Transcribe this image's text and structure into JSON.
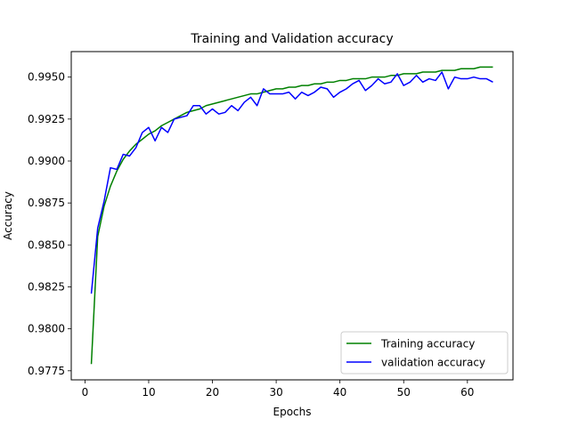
{
  "chart_data": {
    "type": "line",
    "title": "Training and Validation accuracy",
    "xlabel": "Epochs",
    "ylabel": "Accuracy",
    "xlim": [
      -2.15,
      67.15
    ],
    "ylim": [
      0.97696,
      0.99652
    ],
    "xticks": [
      0,
      10,
      20,
      30,
      40,
      50,
      60
    ],
    "xtick_labels": [
      "0",
      "10",
      "20",
      "30",
      "40",
      "50",
      "60"
    ],
    "yticks": [
      0.9775,
      0.98,
      0.9825,
      0.985,
      0.9875,
      0.99,
      0.9925,
      0.995
    ],
    "ytick_labels": [
      "0.9775",
      "0.9800",
      "0.9825",
      "0.9850",
      "0.9875",
      "0.9900",
      "0.9925",
      "0.9950"
    ],
    "grid": false,
    "legend_position": "lower-right",
    "x": [
      1,
      2,
      3,
      4,
      5,
      6,
      7,
      8,
      9,
      10,
      11,
      12,
      13,
      14,
      15,
      16,
      17,
      18,
      19,
      20,
      21,
      22,
      23,
      24,
      25,
      26,
      27,
      28,
      29,
      30,
      31,
      32,
      33,
      34,
      35,
      36,
      37,
      38,
      39,
      40,
      41,
      42,
      43,
      44,
      45,
      46,
      47,
      48,
      49,
      50,
      51,
      52,
      53,
      54,
      55,
      56,
      57,
      58,
      59,
      60,
      61,
      62,
      63,
      64
    ],
    "series": [
      {
        "name": "Training accuracy",
        "color": "#008000",
        "values": [
          0.9779,
          0.9855,
          0.9873,
          0.9885,
          0.9894,
          0.9901,
          0.9906,
          0.991,
          0.9913,
          0.9916,
          0.9918,
          0.9921,
          0.9923,
          0.9925,
          0.9927,
          0.9929,
          0.993,
          0.9931,
          0.9933,
          0.9934,
          0.9935,
          0.9936,
          0.9937,
          0.9938,
          0.9939,
          0.994,
          0.994,
          0.9941,
          0.9942,
          0.9943,
          0.9943,
          0.9944,
          0.9944,
          0.9945,
          0.9945,
          0.9946,
          0.9946,
          0.9947,
          0.9947,
          0.9948,
          0.9948,
          0.9949,
          0.9949,
          0.9949,
          0.995,
          0.995,
          0.995,
          0.9951,
          0.9951,
          0.9952,
          0.9952,
          0.9952,
          0.9953,
          0.9953,
          0.9953,
          0.9954,
          0.9954,
          0.9954,
          0.9955,
          0.9955,
          0.9955,
          0.9956,
          0.9956,
          0.9956
        ]
      },
      {
        "name": "validation accuracy",
        "color": "#0000ff",
        "values": [
          0.9821,
          0.986,
          0.9876,
          0.9896,
          0.9895,
          0.9904,
          0.9903,
          0.9908,
          0.9917,
          0.992,
          0.9912,
          0.992,
          0.9917,
          0.9925,
          0.9926,
          0.9927,
          0.9933,
          0.9933,
          0.9928,
          0.9931,
          0.9928,
          0.9929,
          0.9933,
          0.993,
          0.9935,
          0.9938,
          0.9933,
          0.9943,
          0.994,
          0.994,
          0.994,
          0.9941,
          0.9937,
          0.9941,
          0.9939,
          0.9941,
          0.9944,
          0.9943,
          0.9938,
          0.9941,
          0.9943,
          0.9946,
          0.9948,
          0.9942,
          0.9945,
          0.9949,
          0.9946,
          0.9947,
          0.9952,
          0.9945,
          0.9947,
          0.9951,
          0.9947,
          0.9949,
          0.9948,
          0.9953,
          0.9943,
          0.995,
          0.9949,
          0.9949,
          0.995,
          0.9949,
          0.9949,
          0.9947
        ]
      }
    ]
  }
}
